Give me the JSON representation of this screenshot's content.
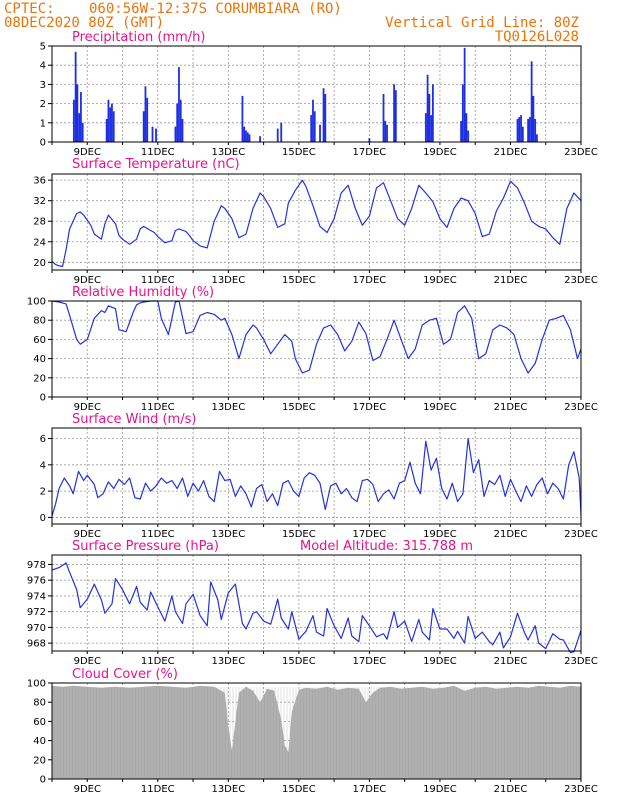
{
  "header": {
    "source": "CPTEC:",
    "location": "060:56W-12:37S  CORUMBIARA (RO)",
    "run": "08DEC2020 80Z (GMT)",
    "grid_note": "Vertical Grid Line: 80Z",
    "model_code": "TQ0126L028"
  },
  "colors": {
    "line": "#2233dd",
    "bar": "#1f2ee0",
    "cloud": "#a9a9a9",
    "header": "#e8750c",
    "title": "#e6148c"
  },
  "chart_data": [
    {
      "id": "precip",
      "type": "bar",
      "title": "Precipitation (mm/h)",
      "ylim": [
        0,
        5
      ],
      "yticks": [
        0,
        1,
        2,
        3,
        4,
        5
      ],
      "xticks": [
        "9DEC",
        "11DEC",
        "13DEC",
        "15DEC",
        "17DEC",
        "19DEC",
        "21DEC",
        "23DEC"
      ],
      "x_start_day": 8,
      "x_end_day": 23,
      "bars": [
        {
          "x": 8.62,
          "y": 2.2
        },
        {
          "x": 8.67,
          "y": 4.7
        },
        {
          "x": 8.72,
          "y": 3.0
        },
        {
          "x": 8.77,
          "y": 1.5
        },
        {
          "x": 8.82,
          "y": 2.6
        },
        {
          "x": 8.87,
          "y": 1.0
        },
        {
          "x": 9.55,
          "y": 1.2
        },
        {
          "x": 9.6,
          "y": 2.2
        },
        {
          "x": 9.65,
          "y": 1.8
        },
        {
          "x": 9.7,
          "y": 2.0
        },
        {
          "x": 9.75,
          "y": 1.6
        },
        {
          "x": 10.6,
          "y": 1.6
        },
        {
          "x": 10.65,
          "y": 2.9
        },
        {
          "x": 10.7,
          "y": 2.3
        },
        {
          "x": 10.85,
          "y": 0.8
        },
        {
          "x": 10.95,
          "y": 0.7
        },
        {
          "x": 11.5,
          "y": 0.8
        },
        {
          "x": 11.55,
          "y": 2.0
        },
        {
          "x": 11.6,
          "y": 3.9
        },
        {
          "x": 11.65,
          "y": 2.2
        },
        {
          "x": 11.7,
          "y": 1.2
        },
        {
          "x": 13.4,
          "y": 2.4
        },
        {
          "x": 13.45,
          "y": 0.8
        },
        {
          "x": 13.5,
          "y": 0.6
        },
        {
          "x": 13.55,
          "y": 0.5
        },
        {
          "x": 13.6,
          "y": 0.4
        },
        {
          "x": 13.9,
          "y": 0.3
        },
        {
          "x": 14.4,
          "y": 0.7
        },
        {
          "x": 14.5,
          "y": 1.0
        },
        {
          "x": 15.35,
          "y": 1.4
        },
        {
          "x": 15.4,
          "y": 2.2
        },
        {
          "x": 15.45,
          "y": 1.6
        },
        {
          "x": 15.6,
          "y": 0.9
        },
        {
          "x": 15.7,
          "y": 2.8
        },
        {
          "x": 15.75,
          "y": 2.5
        },
        {
          "x": 17.0,
          "y": 0.2
        },
        {
          "x": 17.4,
          "y": 2.5
        },
        {
          "x": 17.45,
          "y": 1.1
        },
        {
          "x": 17.5,
          "y": 0.9
        },
        {
          "x": 17.7,
          "y": 3.0
        },
        {
          "x": 17.75,
          "y": 2.7
        },
        {
          "x": 18.6,
          "y": 1.5
        },
        {
          "x": 18.65,
          "y": 3.5
        },
        {
          "x": 18.7,
          "y": 2.5
        },
        {
          "x": 18.75,
          "y": 1.4
        },
        {
          "x": 18.8,
          "y": 3.0
        },
        {
          "x": 19.6,
          "y": 1.1
        },
        {
          "x": 19.65,
          "y": 3.0
        },
        {
          "x": 19.7,
          "y": 4.9
        },
        {
          "x": 19.75,
          "y": 1.5
        },
        {
          "x": 19.8,
          "y": 0.6
        },
        {
          "x": 21.2,
          "y": 1.2
        },
        {
          "x": 21.25,
          "y": 1.3
        },
        {
          "x": 21.3,
          "y": 1.4
        },
        {
          "x": 21.35,
          "y": 0.8
        },
        {
          "x": 21.5,
          "y": 1.2
        },
        {
          "x": 21.55,
          "y": 1.3
        },
        {
          "x": 21.6,
          "y": 4.2
        },
        {
          "x": 21.65,
          "y": 2.4
        },
        {
          "x": 21.7,
          "y": 1.2
        },
        {
          "x": 21.75,
          "y": 0.4
        }
      ]
    },
    {
      "id": "temp",
      "type": "line",
      "title": "Surface Temperature (nC)",
      "ylim": [
        18.5,
        37.2
      ],
      "yticks": [
        20,
        24,
        28,
        32,
        36
      ],
      "xticks": [
        "9DEC",
        "11DEC",
        "13DEC",
        "15DEC",
        "17DEC",
        "19DEC",
        "21DEC",
        "23DEC"
      ],
      "x_start_day": 8,
      "x_end_day": 23,
      "x": [
        8.0,
        8.1,
        8.2,
        8.3,
        8.4,
        8.5,
        8.7,
        8.8,
        8.9,
        9.1,
        9.2,
        9.4,
        9.5,
        9.6,
        9.8,
        9.9,
        10.0,
        10.2,
        10.4,
        10.5,
        10.6,
        10.8,
        10.9,
        11.0,
        11.2,
        11.4,
        11.5,
        11.6,
        11.8,
        11.9,
        12.0,
        12.2,
        12.4,
        12.6,
        12.8,
        12.9,
        13.1,
        13.3,
        13.5,
        13.7,
        13.9,
        14.0,
        14.2,
        14.4,
        14.6,
        14.7,
        14.9,
        15.1,
        15.2,
        15.4,
        15.6,
        15.8,
        16.0,
        16.2,
        16.4,
        16.6,
        16.8,
        17.0,
        17.2,
        17.4,
        17.6,
        17.8,
        18.0,
        18.2,
        18.4,
        18.6,
        18.8,
        19.0,
        19.2,
        19.4,
        19.6,
        19.8,
        20.0,
        20.2,
        20.4,
        20.6,
        20.8,
        21.0,
        21.2,
        21.4,
        21.6,
        21.8,
        22.0,
        22.2,
        22.4,
        22.6,
        22.8,
        23.0
      ],
      "y": [
        20.2,
        19.6,
        19.3,
        19.2,
        22.5,
        26.5,
        29.5,
        29.8,
        29.2,
        27.2,
        25.5,
        24.5,
        27.5,
        29.2,
        27.5,
        25.2,
        24.5,
        23.5,
        24.5,
        26.5,
        27.0,
        26.2,
        25.8,
        25.0,
        23.8,
        24.2,
        26.2,
        26.5,
        26.0,
        25.2,
        24.2,
        23.2,
        22.8,
        28.0,
        31.0,
        30.5,
        28.5,
        24.8,
        25.5,
        30.5,
        33.5,
        32.8,
        30.5,
        26.8,
        27.5,
        31.5,
        34.0,
        36.0,
        34.8,
        31.0,
        27.0,
        25.8,
        28.5,
        33.5,
        35.0,
        30.5,
        27.2,
        29.0,
        34.5,
        35.5,
        32.0,
        28.5,
        27.2,
        30.5,
        35.0,
        33.5,
        31.8,
        28.5,
        26.8,
        30.5,
        32.5,
        32.0,
        29.5,
        25.0,
        25.5,
        30.0,
        32.5,
        35.8,
        34.5,
        31.5,
        28.0,
        27.0,
        26.5,
        24.8,
        23.5,
        30.5,
        33.5,
        32.0
      ]
    },
    {
      "id": "rh",
      "type": "line",
      "title": "Relative Humidity (%)",
      "ylim": [
        0,
        100
      ],
      "yticks": [
        0,
        20,
        40,
        60,
        80,
        100
      ],
      "xticks": [
        "9DEC",
        "11DEC",
        "13DEC",
        "15DEC",
        "17DEC",
        "19DEC",
        "21DEC",
        "23DEC"
      ],
      "x_start_day": 8,
      "x_end_day": 23,
      "x": [
        8.0,
        8.2,
        8.4,
        8.5,
        8.7,
        8.8,
        9.0,
        9.2,
        9.4,
        9.5,
        9.6,
        9.8,
        9.9,
        10.1,
        10.3,
        10.4,
        10.5,
        10.6,
        10.8,
        11.0,
        11.1,
        11.3,
        11.5,
        11.6,
        11.8,
        12.0,
        12.2,
        12.4,
        12.6,
        12.8,
        12.9,
        13.1,
        13.3,
        13.5,
        13.7,
        13.8,
        14.0,
        14.2,
        14.4,
        14.6,
        14.8,
        14.9,
        15.1,
        15.3,
        15.5,
        15.7,
        15.9,
        16.1,
        16.3,
        16.5,
        16.7,
        16.9,
        17.1,
        17.3,
        17.5,
        17.7,
        17.9,
        18.1,
        18.3,
        18.5,
        18.7,
        18.9,
        19.1,
        19.3,
        19.5,
        19.7,
        19.9,
        20.1,
        20.3,
        20.5,
        20.7,
        20.9,
        21.1,
        21.3,
        21.5,
        21.7,
        21.9,
        22.1,
        22.3,
        22.5,
        22.7,
        22.9,
        23.0
      ],
      "y": [
        100,
        99,
        97,
        85,
        60,
        55,
        60,
        82,
        90,
        88,
        95,
        92,
        70,
        68,
        88,
        96,
        98,
        99,
        100,
        100,
        82,
        65,
        99,
        100,
        66,
        68,
        85,
        88,
        86,
        80,
        82,
        65,
        40,
        65,
        75,
        72,
        60,
        45,
        55,
        65,
        58,
        40,
        25,
        28,
        55,
        72,
        75,
        65,
        48,
        58,
        78,
        66,
        38,
        42,
        60,
        80,
        60,
        40,
        50,
        75,
        80,
        82,
        55,
        60,
        88,
        95,
        82,
        40,
        45,
        70,
        75,
        72,
        65,
        40,
        25,
        35,
        60,
        80,
        82,
        85,
        70,
        40,
        50
      ]
    },
    {
      "id": "wind",
      "type": "line",
      "title": "Surface Wind (m/s)",
      "ylim": [
        -0.5,
        6.8
      ],
      "yticks": [
        0,
        2,
        4,
        6
      ],
      "xticks": [
        "9DEC",
        "11DEC",
        "13DEC",
        "15DEC",
        "17DEC",
        "19DEC",
        "21DEC",
        "23DEC"
      ],
      "x_start_day": 8,
      "x_end_day": 23,
      "x": [
        8.0,
        8.1,
        8.2,
        8.35,
        8.5,
        8.6,
        8.75,
        8.9,
        9.0,
        9.2,
        9.3,
        9.45,
        9.6,
        9.75,
        9.9,
        10.05,
        10.2,
        10.35,
        10.5,
        10.65,
        10.8,
        10.95,
        11.1,
        11.25,
        11.4,
        11.55,
        11.7,
        11.85,
        12.0,
        12.15,
        12.3,
        12.45,
        12.6,
        12.75,
        12.9,
        13.05,
        13.2,
        13.35,
        13.5,
        13.65,
        13.8,
        13.95,
        14.1,
        14.25,
        14.4,
        14.55,
        14.7,
        14.85,
        15.0,
        15.15,
        15.3,
        15.45,
        15.6,
        15.75,
        15.9,
        16.05,
        16.2,
        16.35,
        16.5,
        16.65,
        16.8,
        16.95,
        17.1,
        17.25,
        17.4,
        17.55,
        17.7,
        17.85,
        18.0,
        18.15,
        18.3,
        18.45,
        18.6,
        18.75,
        18.9,
        19.05,
        19.2,
        19.35,
        19.5,
        19.65,
        19.8,
        19.95,
        20.1,
        20.25,
        20.4,
        20.55,
        20.7,
        20.85,
        21.0,
        21.15,
        21.3,
        21.45,
        21.6,
        21.75,
        21.9,
        22.05,
        22.2,
        22.35,
        22.5,
        22.65,
        22.8,
        22.95,
        23.0
      ],
      "y": [
        0.1,
        1.0,
        2.2,
        3.0,
        2.4,
        1.8,
        3.5,
        2.8,
        3.2,
        2.5,
        1.5,
        1.8,
        2.7,
        2.2,
        2.9,
        2.5,
        3.0,
        1.5,
        1.4,
        2.6,
        2.0,
        2.4,
        3.0,
        2.6,
        2.8,
        2.2,
        3.0,
        1.6,
        2.6,
        2.0,
        2.8,
        1.6,
        1.2,
        3.5,
        2.8,
        2.9,
        1.6,
        2.4,
        1.8,
        0.8,
        2.2,
        2.5,
        1.2,
        1.8,
        0.9,
        2.6,
        2.8,
        2.0,
        1.6,
        3.0,
        3.4,
        3.2,
        2.6,
        0.6,
        2.4,
        2.6,
        1.8,
        2.2,
        1.5,
        1.2,
        2.8,
        2.9,
        2.5,
        1.2,
        1.8,
        2.1,
        1.4,
        2.6,
        2.8,
        4.2,
        2.6,
        1.8,
        5.8,
        3.6,
        4.5,
        2.2,
        1.4,
        2.6,
        1.2,
        1.8,
        6.0,
        3.4,
        4.4,
        1.6,
        2.8,
        2.5,
        3.2,
        1.6,
        2.9,
        2.0,
        1.2,
        2.4,
        1.6,
        2.5,
        3.0,
        1.8,
        2.6,
        2.2,
        1.4,
        4.0,
        5.0,
        3.0,
        0.2
      ]
    },
    {
      "id": "pres",
      "type": "line",
      "title": "Surface Pressure (hPa)",
      "annotation": "Model Altitude: 315.788 m",
      "ylim": [
        967.0,
        979.2
      ],
      "yticks": [
        968,
        970,
        972,
        974,
        976,
        978
      ],
      "xticks": [
        "9DEC",
        "11DEC",
        "13DEC",
        "15DEC",
        "17DEC",
        "19DEC",
        "21DEC",
        "23DEC"
      ],
      "x_start_day": 8,
      "x_end_day": 23,
      "x": [
        8.0,
        8.2,
        8.4,
        8.5,
        8.7,
        8.8,
        9.0,
        9.2,
        9.4,
        9.5,
        9.7,
        9.8,
        10.0,
        10.2,
        10.4,
        10.5,
        10.7,
        10.8,
        11.0,
        11.2,
        11.4,
        11.5,
        11.7,
        11.8,
        12.0,
        12.2,
        12.4,
        12.5,
        12.7,
        12.8,
        13.0,
        13.2,
        13.4,
        13.5,
        13.7,
        13.8,
        14.0,
        14.2,
        14.4,
        14.5,
        14.7,
        14.8,
        15.0,
        15.2,
        15.4,
        15.5,
        15.7,
        15.8,
        16.0,
        16.2,
        16.4,
        16.5,
        16.7,
        16.8,
        17.0,
        17.2,
        17.4,
        17.5,
        17.7,
        17.8,
        18.0,
        18.2,
        18.4,
        18.5,
        18.7,
        18.8,
        19.0,
        19.2,
        19.4,
        19.5,
        19.7,
        19.8,
        20.0,
        20.2,
        20.4,
        20.5,
        20.7,
        20.8,
        21.0,
        21.2,
        21.4,
        21.5,
        21.7,
        21.8,
        22.0,
        22.2,
        22.4,
        22.5,
        22.7,
        22.8,
        23.0
      ],
      "y": [
        977.3,
        977.6,
        978.2,
        977.0,
        974.8,
        972.5,
        973.6,
        975.5,
        973.5,
        971.8,
        973.0,
        976.2,
        974.8,
        973.0,
        975.2,
        973.2,
        972.2,
        974.5,
        972.6,
        970.8,
        974.0,
        972.0,
        970.5,
        973.0,
        974.2,
        971.5,
        970.2,
        975.8,
        973.5,
        971.0,
        974.4,
        975.5,
        970.5,
        969.8,
        971.8,
        972.0,
        970.8,
        970.4,
        973.6,
        971.2,
        969.8,
        972.0,
        968.5,
        969.5,
        971.5,
        969.4,
        968.9,
        972.4,
        970.2,
        968.6,
        971.2,
        968.9,
        968.2,
        971.5,
        970.2,
        968.8,
        969.2,
        968.5,
        972.0,
        970.0,
        970.8,
        968.2,
        971.0,
        969.4,
        968.4,
        972.4,
        969.8,
        969.8,
        968.6,
        969.5,
        968.0,
        971.4,
        968.6,
        969.4,
        968.2,
        967.8,
        969.4,
        967.4,
        968.8,
        971.8,
        969.3,
        968.4,
        970.2,
        968.0,
        967.3,
        969.2,
        968.5,
        968.4,
        966.8,
        966.9,
        969.6
      ]
    },
    {
      "id": "cloud",
      "type": "area",
      "title": "Cloud Cover (%)",
      "ylim": [
        0,
        100
      ],
      "yticks": [
        0,
        20,
        40,
        60,
        80,
        100
      ],
      "xticks": [
        "9DEC",
        "11DEC",
        "13DEC",
        "15DEC",
        "17DEC",
        "19DEC",
        "21DEC",
        "23DEC"
      ],
      "x_start_day": 8,
      "x_end_day": 23,
      "x": [
        8.0,
        8.3,
        8.6,
        9.0,
        9.4,
        9.8,
        10.2,
        10.6,
        11.0,
        11.4,
        11.8,
        12.2,
        12.6,
        12.9,
        13.0,
        13.1,
        13.3,
        13.5,
        13.7,
        13.9,
        14.1,
        14.3,
        14.5,
        14.6,
        14.7,
        14.8,
        15.0,
        15.2,
        15.5,
        15.8,
        16.1,
        16.4,
        16.7,
        16.9,
        17.1,
        17.3,
        17.6,
        17.9,
        18.2,
        18.5,
        18.8,
        19.1,
        19.4,
        19.7,
        20.0,
        20.3,
        20.6,
        20.9,
        21.2,
        21.5,
        21.8,
        22.1,
        22.4,
        22.7,
        23.0
      ],
      "y": [
        97,
        96,
        97,
        96,
        95,
        96,
        95,
        96,
        97,
        96,
        95,
        97,
        96,
        90,
        55,
        30,
        90,
        96,
        92,
        80,
        94,
        92,
        62,
        35,
        28,
        70,
        93,
        95,
        94,
        96,
        93,
        95,
        94,
        80,
        90,
        95,
        96,
        94,
        95,
        96,
        94,
        95,
        97,
        92,
        95,
        96,
        94,
        95,
        96,
        95,
        97,
        96,
        95,
        97,
        96
      ]
    }
  ]
}
